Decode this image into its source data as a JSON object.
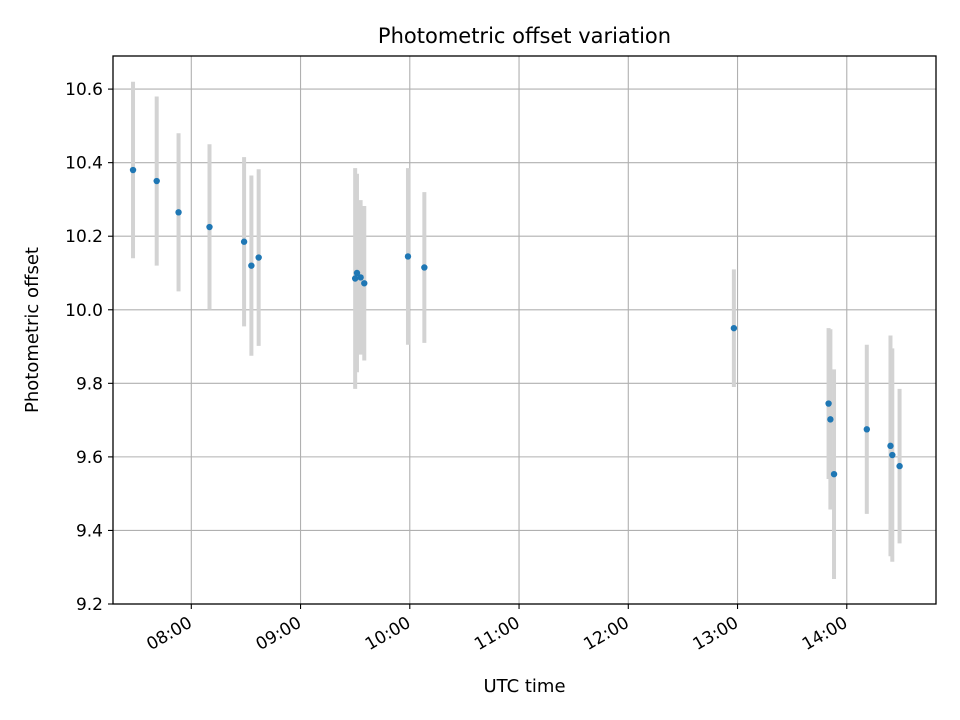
{
  "chart_data": {
    "type": "scatter",
    "title": "Photometric offset variation",
    "xlabel": "UTC time",
    "ylabel": "Photometric offset",
    "x_axis_type": "time",
    "xlim": [
      "07:17",
      "14:49"
    ],
    "ylim": [
      9.2,
      10.69
    ],
    "x_ticks": [
      "08:00",
      "09:00",
      "10:00",
      "11:00",
      "12:00",
      "13:00",
      "14:00"
    ],
    "y_ticks": [
      9.2,
      9.4,
      9.6,
      9.8,
      10.0,
      10.2,
      10.4,
      10.6
    ],
    "x_tick_label_rotation_deg": 30,
    "grid": true,
    "legend": "none",
    "colors": {
      "point": "#1f77b4",
      "errorbar": "#d3d3d3",
      "grid": "#b0b0b0"
    },
    "series": [
      {
        "points": [
          {
            "x": "07:28",
            "y": 10.38,
            "yerr": 0.24
          },
          {
            "x": "07:41",
            "y": 10.35,
            "yerr": 0.23
          },
          {
            "x": "07:53",
            "y": 10.265,
            "yerr": 0.215
          },
          {
            "x": "08:10",
            "y": 10.225,
            "yerr": 0.225
          },
          {
            "x": "08:29",
            "y": 10.185,
            "yerr": 0.23
          },
          {
            "x": "08:33",
            "y": 10.12,
            "yerr": 0.245
          },
          {
            "x": "08:37",
            "y": 10.142,
            "yerr": 0.24
          },
          {
            "x": "09:30",
            "y": 10.085,
            "yerr": 0.3
          },
          {
            "x": "09:31",
            "y": 10.1,
            "yerr": 0.27
          },
          {
            "x": "09:33",
            "y": 10.088,
            "yerr": 0.21
          },
          {
            "x": "09:35",
            "y": 10.072,
            "yerr": 0.21
          },
          {
            "x": "09:59",
            "y": 10.145,
            "yerr": 0.24
          },
          {
            "x": "10:08",
            "y": 10.115,
            "yerr": 0.205
          },
          {
            "x": "12:58",
            "y": 9.95,
            "yerr": 0.16
          },
          {
            "x": "13:50",
            "y": 9.745,
            "yerr": 0.205
          },
          {
            "x": "13:51",
            "y": 9.702,
            "yerr": 0.245
          },
          {
            "x": "13:53",
            "y": 9.553,
            "yerr": 0.285
          },
          {
            "x": "14:11",
            "y": 9.675,
            "yerr": 0.23
          },
          {
            "x": "14:24",
            "y": 9.63,
            "yerr": 0.3
          },
          {
            "x": "14:25",
            "y": 9.605,
            "yerr": 0.29
          },
          {
            "x": "14:29",
            "y": 9.575,
            "yerr": 0.21
          }
        ]
      }
    ]
  }
}
